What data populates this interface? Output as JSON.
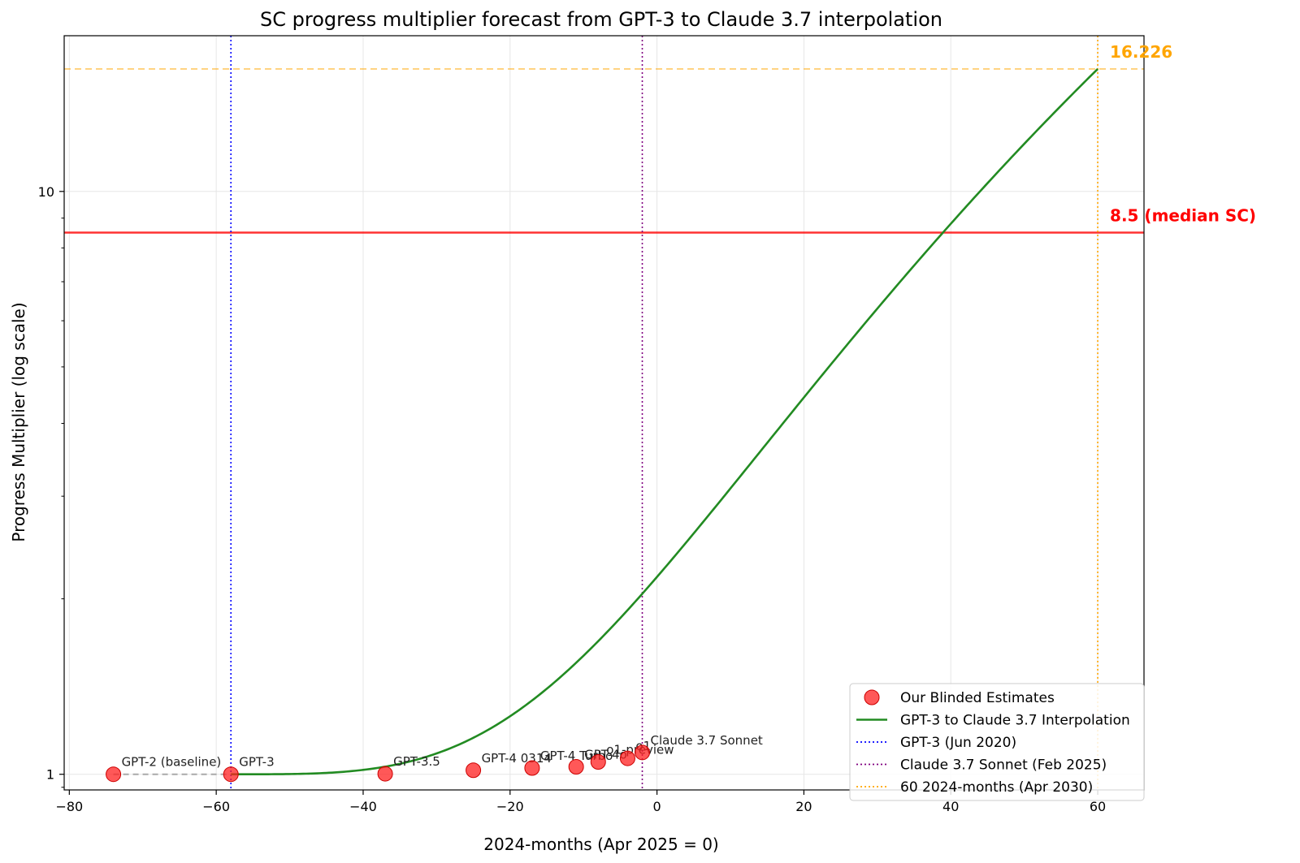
{
  "chart_data": {
    "type": "line",
    "title": "SC progress multiplier forecast from GPT-3 to Claude 3.7 interpolation",
    "xlabel": "2024-months (Apr 2025 = 0)",
    "ylabel": "Progress Multiplier (log scale)",
    "xlim": [
      -80.7,
      66.3
    ],
    "ylim": [
      0.94,
      18.5
    ],
    "yscale": "log",
    "grid": true,
    "legend_position": "lower-right",
    "x_ticks": [
      {
        "value": -80,
        "label": "−80"
      },
      {
        "value": -60,
        "label": "−60"
      },
      {
        "value": -40,
        "label": "−40"
      },
      {
        "value": -20,
        "label": "−20"
      },
      {
        "value": 0,
        "label": "0"
      },
      {
        "value": 20,
        "label": "20"
      },
      {
        "value": 40,
        "label": "40"
      },
      {
        "value": 60,
        "label": "60"
      }
    ],
    "y_ticks": [
      {
        "value": 1,
        "label": "1"
      },
      {
        "value": 10,
        "label": "10"
      }
    ],
    "points": {
      "name": "Our Blinded Estimates",
      "color": "#ff2020",
      "data": [
        {
          "x": -74,
          "y": 1.0,
          "label": "GPT-2 (baseline)"
        },
        {
          "x": -58,
          "y": 1.0,
          "label": "GPT-3"
        },
        {
          "x": -37,
          "y": 1.002,
          "label": "GPT-3.5"
        },
        {
          "x": -25,
          "y": 1.016,
          "label": "GPT-4 0314"
        },
        {
          "x": -17,
          "y": 1.025,
          "label": "GPT-4 Turbo"
        },
        {
          "x": -11,
          "y": 1.03,
          "label": "GPT-4o"
        },
        {
          "x": -8,
          "y": 1.05,
          "label": "o1-preview"
        },
        {
          "x": -4,
          "y": 1.065,
          "label": "o1"
        },
        {
          "x": -2,
          "y": 1.09,
          "label": "Claude 3.7 Sonnet"
        }
      ]
    },
    "baseline_link": {
      "x": [
        -74,
        -58
      ],
      "y": [
        1.0,
        1.0
      ],
      "color": "#aaaaaa"
    },
    "interpolation": {
      "name": "GPT-3 to Claude 3.7 Interpolation",
      "color": "#228b22",
      "x0": -58,
      "x1": 60,
      "y_end": 16.226
    },
    "vlines": [
      {
        "x": -58,
        "name": "GPT-3 (Jun 2020)",
        "color": "#0000ff"
      },
      {
        "x": -2,
        "name": "Claude 3.7 Sonnet (Feb 2025)",
        "color": "#800080"
      },
      {
        "x": 60,
        "name": "60 2024-months (Apr 2030)",
        "color": "#ffa500"
      }
    ],
    "hlines": [
      {
        "y": 8.5,
        "label": "8.5 (median SC)",
        "color": "#ff0000",
        "style": "solid"
      },
      {
        "y": 16.226,
        "label": "16.226",
        "color": "#ffa500",
        "style": "dashed"
      }
    ]
  }
}
